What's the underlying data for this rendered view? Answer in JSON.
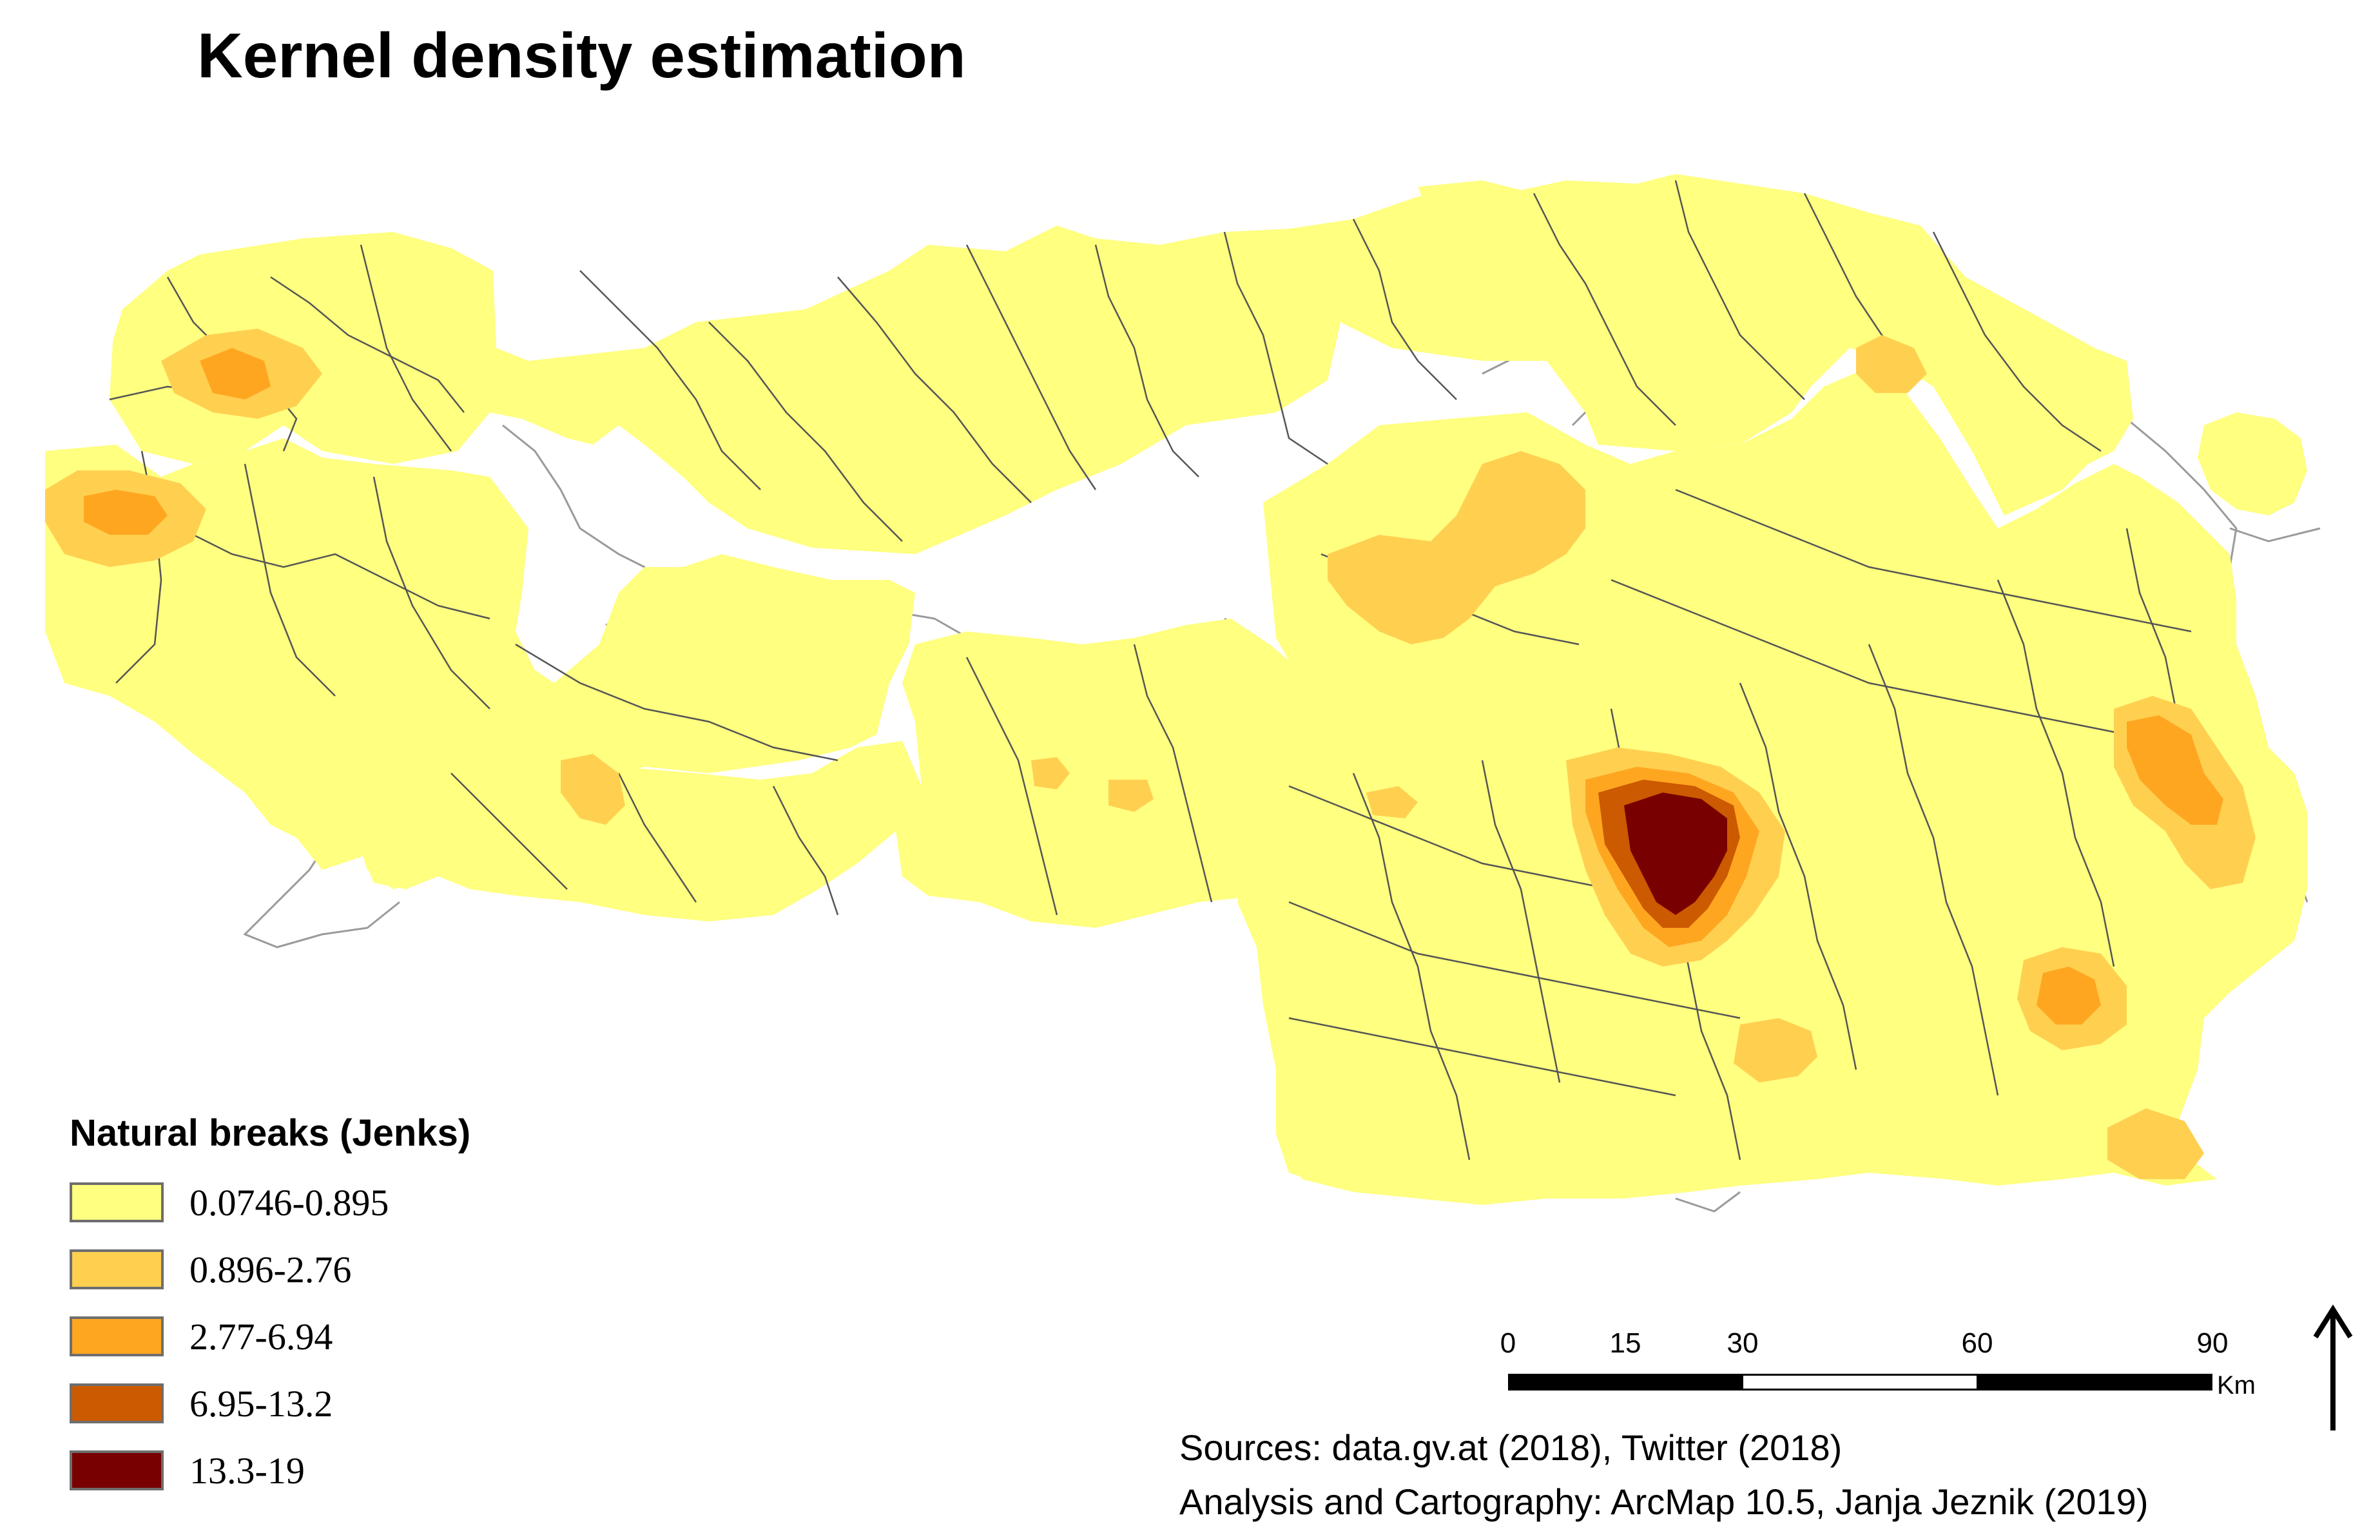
{
  "title": "Kernel density estimation",
  "legend": {
    "title": "Natural breaks (Jenks)",
    "classes": [
      {
        "label": "0.0746-0.895",
        "color": "#ffff80"
      },
      {
        "label": "0.896-2.76",
        "color": "#ffd050"
      },
      {
        "label": "2.77-6.94",
        "color": "#ffa620"
      },
      {
        "label": "6.95-13.2",
        "color": "#cc5a00"
      },
      {
        "label": "13.3-19",
        "color": "#780000"
      }
    ]
  },
  "scalebar": {
    "ticks": [
      "0",
      "15",
      "30",
      "60",
      "90"
    ],
    "tick_values": [
      0,
      15,
      30,
      60,
      90
    ],
    "unit": "Km"
  },
  "north_arrow": {
    "icon": "north-arrow-icon"
  },
  "credits": {
    "line1": "Sources: data.gv.at (2018), Twitter (2018)",
    "line2": "Analysis and Cartography: ArcMap 10.5, Janja Jeznik (2019)"
  },
  "colors": {
    "boundary": "#555555",
    "outline_gray": "#9a9a9a"
  }
}
